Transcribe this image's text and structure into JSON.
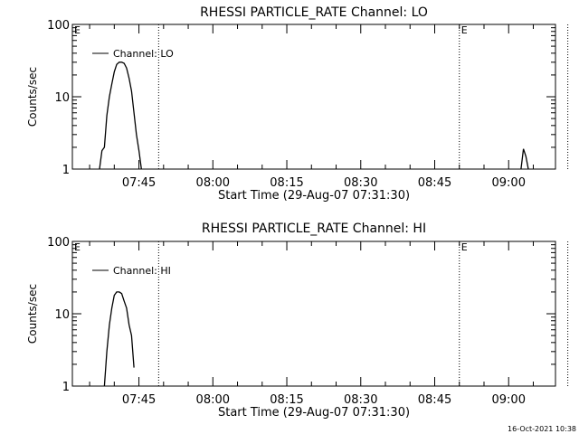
{
  "timestamp": "16-Oct-2021 10:38",
  "chart_data": [
    {
      "type": "line",
      "title": "RHESSI PARTICLE_RATE Channel: LO",
      "xlabel": "Start Time (29-Aug-07 07:31:30)",
      "ylabel": "Counts/sec",
      "xlim_minutes_after_0730": [
        1.5,
        99.5
      ],
      "ylim": [
        1,
        100
      ],
      "yscale": "log",
      "x_tick_labels": [
        "07:45",
        "08:00",
        "08:15",
        "08:30",
        "08:45",
        "09:00"
      ],
      "y_tick_labels": [
        "1",
        "10",
        "100"
      ],
      "legend": "Channel: LO",
      "legend_position": "top-left",
      "event_markers": [
        {
          "label": "E",
          "time": "07:30"
        },
        {
          "label": "E",
          "time": "08:50"
        }
      ],
      "dotted_lines": [
        "07:49",
        "08:50",
        "09:12"
      ],
      "series": [
        {
          "name": "Channel: LO",
          "segments": [
            [
              [
                "07:37:00",
                1.0
              ],
              [
                "07:37:30",
                1.8
              ],
              [
                "07:38:00",
                2.0
              ],
              [
                "07:38:30",
                5.5
              ],
              [
                "07:39:00",
                10
              ],
              [
                "07:39:30",
                15
              ],
              [
                "07:40:00",
                22
              ],
              [
                "07:40:30",
                28
              ],
              [
                "07:41:00",
                30
              ],
              [
                "07:41:30",
                30
              ],
              [
                "07:42:00",
                29
              ],
              [
                "07:42:30",
                25
              ],
              [
                "07:43:00",
                18
              ],
              [
                "07:43:30",
                12
              ],
              [
                "07:44:00",
                6
              ],
              [
                "07:44:30",
                3
              ],
              [
                "07:45:00",
                1.8
              ],
              [
                "07:45:30",
                1.0
              ]
            ],
            [
              [
                "09:02:30",
                1.0
              ],
              [
                "09:03:00",
                1.9
              ],
              [
                "09:03:30",
                1.5
              ],
              [
                "09:04:00",
                1.0
              ]
            ]
          ]
        }
      ]
    },
    {
      "type": "line",
      "title": "RHESSI PARTICLE_RATE Channel: HI",
      "xlabel": "Start Time (29-Aug-07 07:31:30)",
      "ylabel": "Counts/sec",
      "xlim_minutes_after_0730": [
        1.5,
        99.5
      ],
      "ylim": [
        1,
        100
      ],
      "yscale": "log",
      "x_tick_labels": [
        "07:45",
        "08:00",
        "08:15",
        "08:30",
        "08:45",
        "09:00"
      ],
      "y_tick_labels": [
        "1",
        "10",
        "100"
      ],
      "legend": "Channel: HI",
      "legend_position": "top-left",
      "event_markers": [
        {
          "label": "E",
          "time": "07:30"
        },
        {
          "label": "E",
          "time": "08:50"
        }
      ],
      "dotted_lines": [
        "07:49",
        "08:50",
        "09:12"
      ],
      "series": [
        {
          "name": "Channel: HI",
          "segments": [
            [
              [
                "07:38:00",
                1.0
              ],
              [
                "07:38:30",
                3.0
              ],
              [
                "07:39:00",
                7.0
              ],
              [
                "07:39:30",
                12
              ],
              [
                "07:40:00",
                18
              ],
              [
                "07:40:30",
                20
              ],
              [
                "07:41:00",
                20
              ],
              [
                "07:41:30",
                19
              ],
              [
                "07:42:00",
                15
              ],
              [
                "07:42:30",
                12
              ],
              [
                "07:43:00",
                7
              ],
              [
                "07:43:30",
                5
              ],
              [
                "07:44:00",
                1.8
              ]
            ]
          ]
        }
      ]
    }
  ]
}
